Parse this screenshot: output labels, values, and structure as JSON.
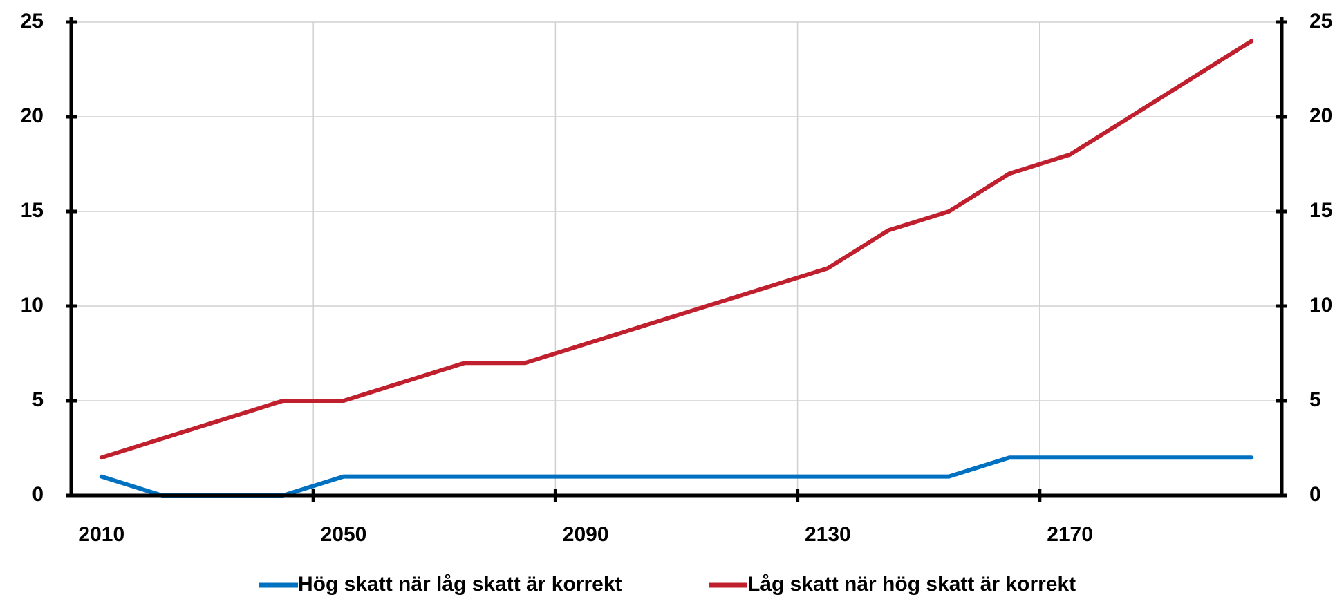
{
  "chart_data": {
    "type": "line",
    "x": [
      2010,
      2020,
      2030,
      2040,
      2050,
      2060,
      2070,
      2080,
      2090,
      2100,
      2110,
      2120,
      2130,
      2140,
      2150,
      2160,
      2170,
      2180,
      2190,
      2200
    ],
    "series": [
      {
        "name": "Hög skatt när låg skatt är korrekt",
        "color": "#0070c0",
        "values": [
          1,
          0,
          0,
          0,
          1,
          1,
          1,
          1,
          1,
          1,
          1,
          1,
          1,
          1,
          1,
          2,
          2,
          2,
          2,
          2
        ]
      },
      {
        "name": "Låg skatt när hög skatt är korrekt",
        "color": "#c0202e",
        "values": [
          2,
          3,
          4,
          5,
          5,
          6,
          7,
          7,
          8,
          9,
          10,
          11,
          12,
          14,
          15,
          17,
          18,
          20,
          22,
          24
        ]
      }
    ],
    "xlim": [
      2005,
      2205
    ],
    "xticks": [
      2010,
      2050,
      2090,
      2130,
      2170
    ],
    "x_gridlines": [
      2045,
      2085,
      2125,
      2165
    ],
    "ylim": [
      0,
      25
    ],
    "yticks": [
      0,
      5,
      10,
      15,
      20,
      25
    ],
    "y2lim": [
      0,
      25
    ],
    "y2ticks": [
      0,
      5,
      10,
      15,
      20,
      25
    ],
    "grid": true,
    "legend": "bottom"
  }
}
